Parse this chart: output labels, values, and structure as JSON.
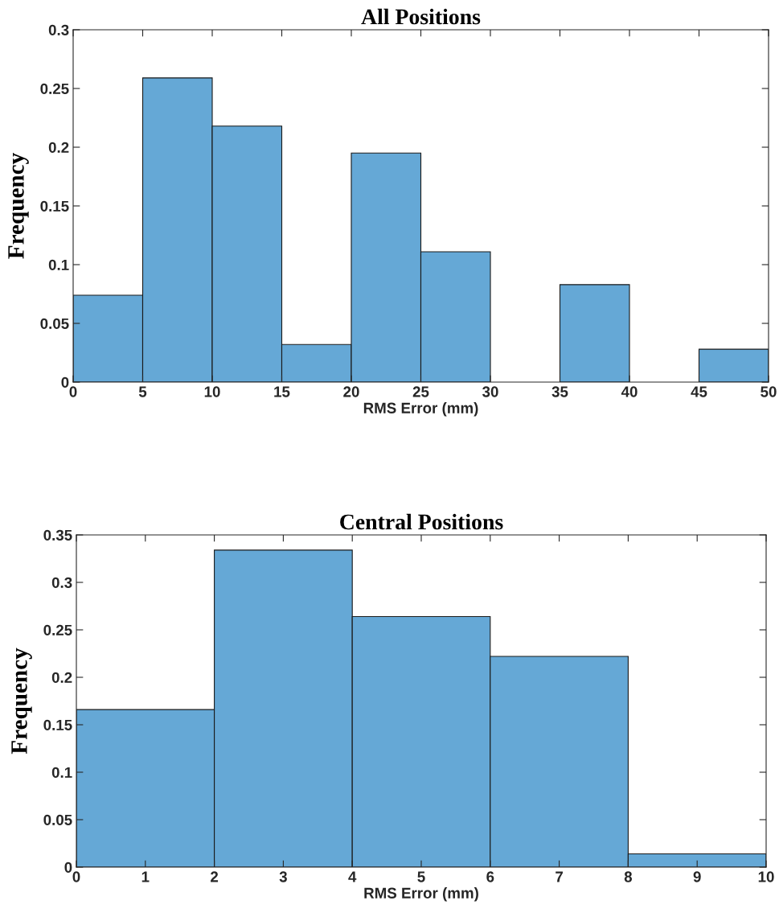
{
  "chart_data": [
    {
      "type": "histogram",
      "title": "All Positions",
      "xlabel": "RMS Error (mm)",
      "ylabel": "Frequency",
      "color": "#65a8d6",
      "bins": [
        0,
        5,
        10,
        15,
        20,
        25,
        30,
        35,
        40,
        45,
        50
      ],
      "values": [
        0.074,
        0.259,
        0.218,
        0.032,
        0.195,
        0.111,
        0,
        0.083,
        0,
        0.028
      ],
      "xlim": [
        0,
        50
      ],
      "xticks": [
        0,
        5,
        10,
        15,
        20,
        25,
        30,
        35,
        40,
        45,
        50
      ],
      "ylim": [
        0,
        0.3
      ],
      "yticks": [
        0,
        0.05,
        0.1,
        0.15,
        0.2,
        0.25,
        0.3
      ],
      "grid": false,
      "legend": false
    },
    {
      "type": "histogram",
      "title": "Central Positions",
      "xlabel": "RMS Error (mm)",
      "ylabel": "Frequency",
      "color": "#65a8d6",
      "bins": [
        0,
        2,
        4,
        6,
        8,
        10
      ],
      "values": [
        0.166,
        0.334,
        0.264,
        0.222,
        0.014
      ],
      "xlim": [
        0,
        10
      ],
      "xticks": [
        0,
        1,
        2,
        3,
        4,
        5,
        6,
        7,
        8,
        9,
        10
      ],
      "ylim": [
        0,
        0.35
      ],
      "yticks": [
        0,
        0.05,
        0.1,
        0.15,
        0.2,
        0.25,
        0.3,
        0.35
      ],
      "grid": false,
      "legend": false
    }
  ]
}
